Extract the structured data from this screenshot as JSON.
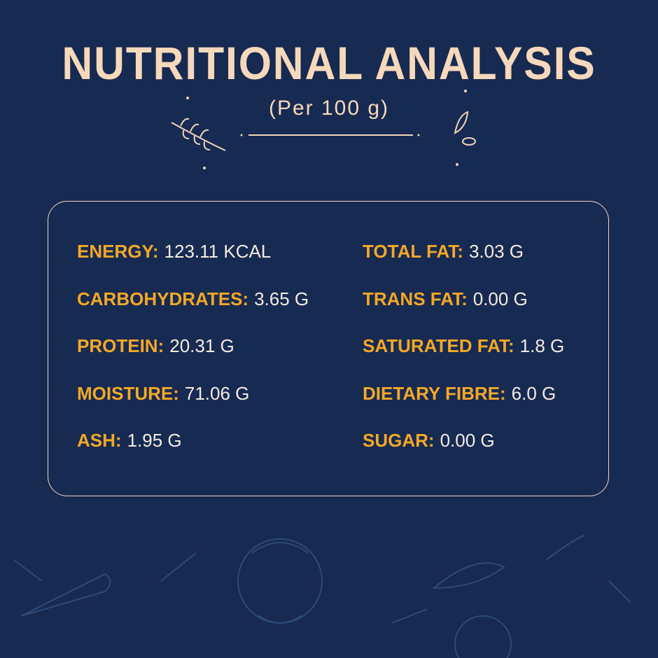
{
  "header": {
    "title": "NUTRITIONAL ANALYSIS",
    "subtitle": "(Per 100 g)"
  },
  "nutrients": {
    "left": [
      {
        "label": "ENERGY:",
        "value": "123.11 KCAL"
      },
      {
        "label": "CARBOHYDRATES:",
        "value": "3.65 G"
      },
      {
        "label": "PROTEIN:",
        "value": "20.31 G"
      },
      {
        "label": "MOISTURE:",
        "value": "71.06 G"
      },
      {
        "label": "ASH:",
        "value": "1.95 G"
      }
    ],
    "right": [
      {
        "label": "TOTAL FAT:",
        "value": "3.03 G"
      },
      {
        "label": "TRANS FAT:",
        "value": "0.00 G"
      },
      {
        "label": "SATURATED FAT:",
        "value": "1.8 G"
      },
      {
        "label": "DIETARY FIBRE:",
        "value": "6.0 G"
      },
      {
        "label": "SUGAR:",
        "value": "0.00 G"
      }
    ]
  }
}
